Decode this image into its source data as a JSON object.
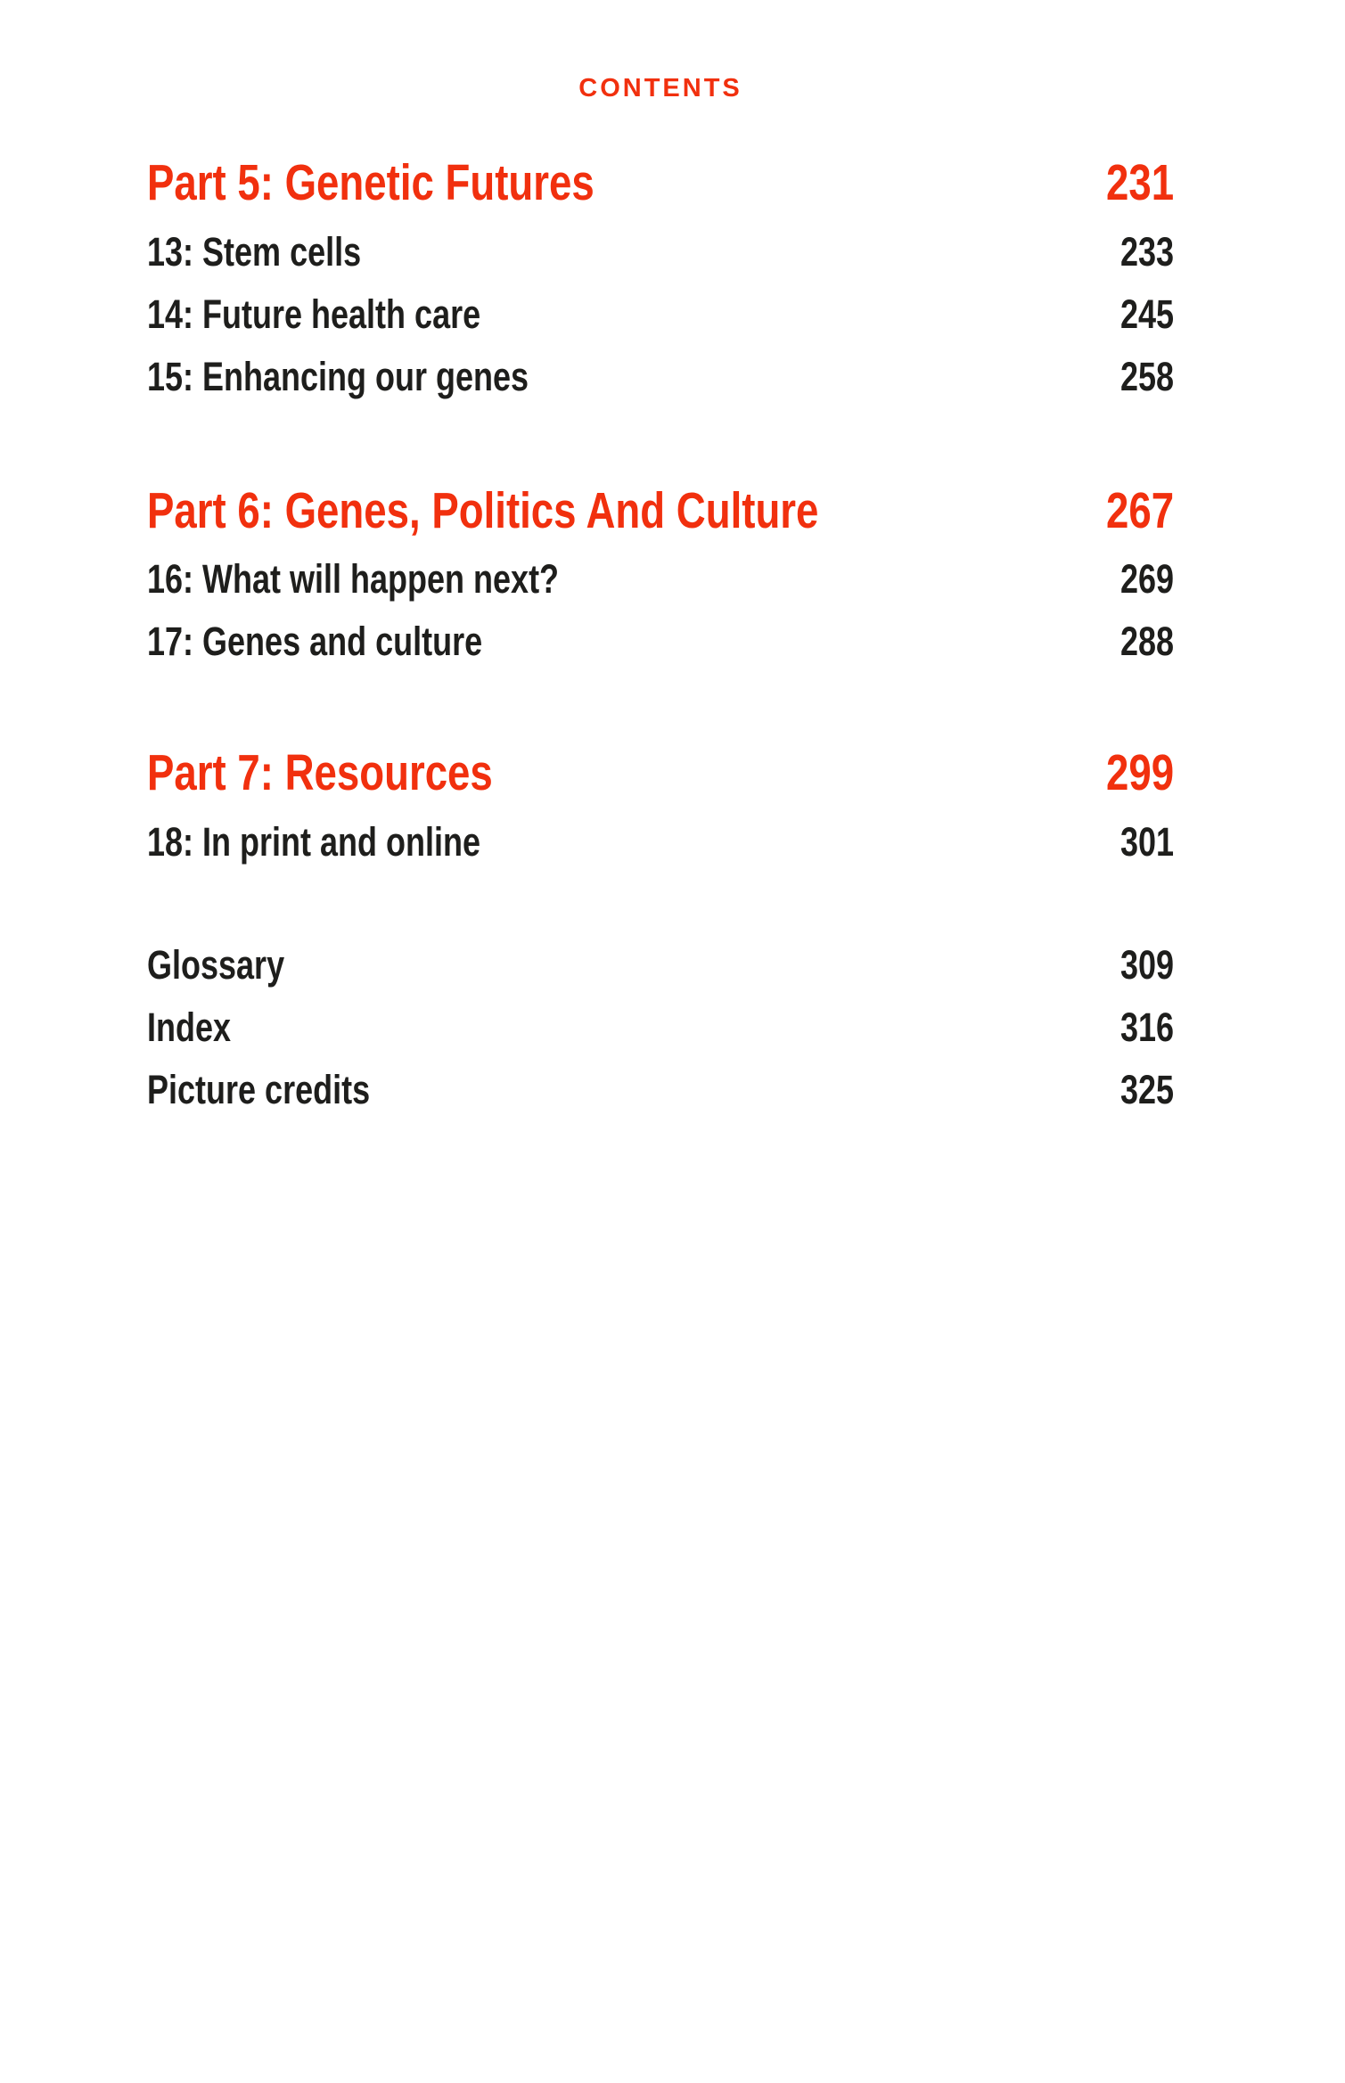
{
  "page": {
    "header": "CONTENTS",
    "colors": {
      "accent": "#f1300e",
      "text": "#1e1e1c",
      "background": "#ffffff"
    }
  },
  "toc": {
    "sections": [
      {
        "title": "Part 5: Genetic Futures",
        "page": "231",
        "items": [
          {
            "label": "13: Stem cells",
            "page": "233"
          },
          {
            "label": "14: Future health care",
            "page": "245"
          },
          {
            "label": "15: Enhancing our genes",
            "page": "258"
          }
        ]
      },
      {
        "title": "Part 6: Genes, Politics And Culture",
        "page": "267",
        "items": [
          {
            "label": "16: What will happen next?",
            "page": "269"
          },
          {
            "label": "17: Genes and culture",
            "page": "288"
          }
        ]
      },
      {
        "title": "Part 7: Resources",
        "page": "299",
        "items": [
          {
            "label": "18: In print and online",
            "page": "301"
          }
        ]
      }
    ],
    "back_matter": [
      {
        "label": "Glossary",
        "page": "309"
      },
      {
        "label": "Index",
        "page": "316"
      },
      {
        "label": "Picture credits",
        "page": "325"
      }
    ]
  }
}
